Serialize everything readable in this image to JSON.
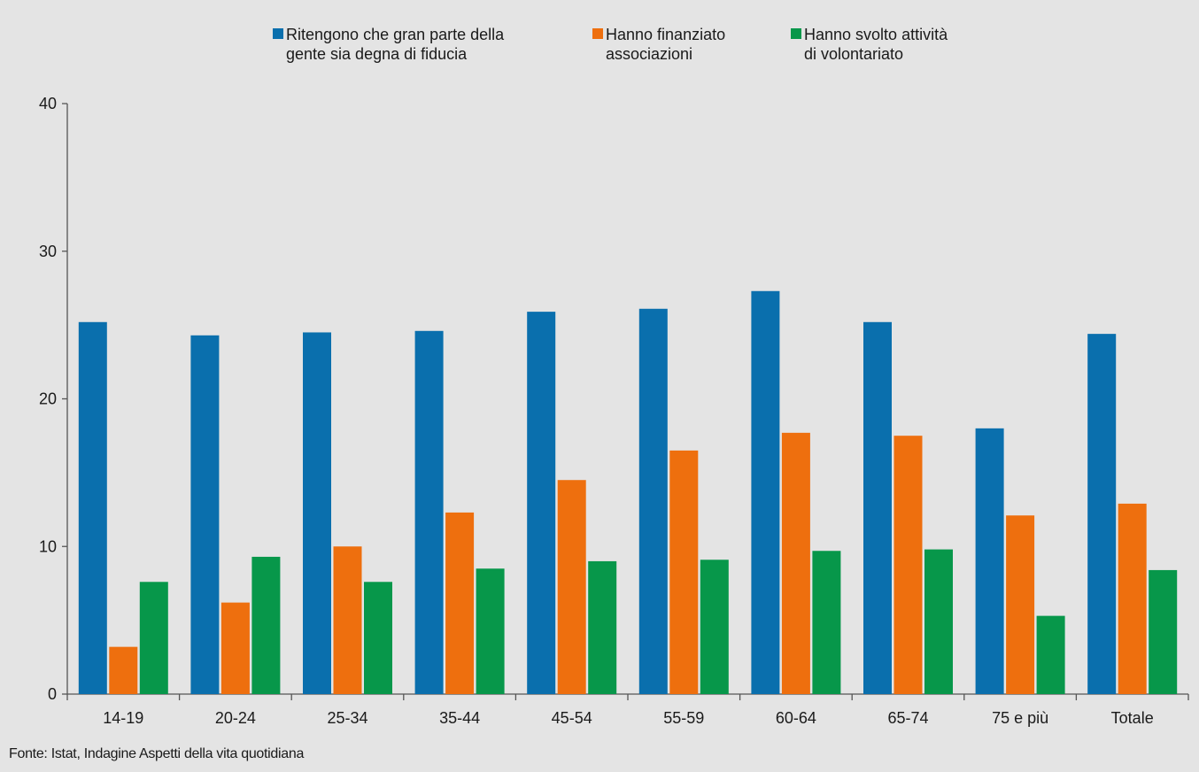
{
  "chart_data": {
    "type": "bar",
    "categories": [
      "14-19",
      "20-24",
      "25-34",
      "35-44",
      "45-54",
      "55-59",
      "60-64",
      "65-74",
      "75 e più",
      "Totale"
    ],
    "series": [
      {
        "name": "Ritengono che gran parte della\ngente sia degna di fiducia",
        "color": "#0a6fad",
        "values": [
          25.2,
          24.3,
          24.5,
          24.6,
          25.9,
          26.1,
          27.3,
          25.2,
          18.0,
          24.4
        ]
      },
      {
        "name": "Hanno finanziato\nassociazioni",
        "color": "#ee6f0e",
        "values": [
          3.2,
          6.2,
          10.0,
          12.3,
          14.5,
          16.5,
          17.7,
          17.5,
          12.1,
          12.9
        ]
      },
      {
        "name": "Hanno svolto attività\ndi volontariato",
        "color": "#07974a",
        "values": [
          7.6,
          9.3,
          7.6,
          8.5,
          9.0,
          9.1,
          9.7,
          9.8,
          5.3,
          8.4
        ]
      }
    ],
    "yticks": [
      "0",
      "10",
      "20",
      "30",
      "40"
    ],
    "ylim": [
      0,
      40
    ],
    "grid": false,
    "legend_position": "top"
  },
  "source": "Fonte: Istat, Indagine Aspetti della vita quotidiana"
}
